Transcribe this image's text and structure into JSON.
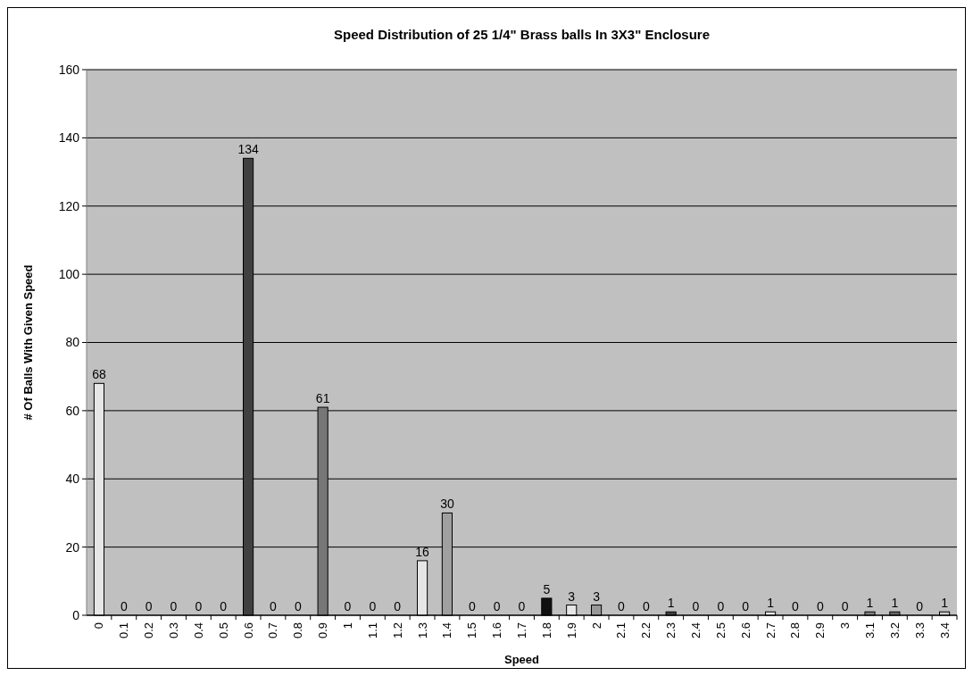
{
  "chart_data": {
    "type": "bar",
    "title": "Speed Distribution of 25 1/4\" Brass balls In 3X3\" Enclosure",
    "xlabel": "Speed",
    "ylabel": "# Of Balls With Given Speed",
    "categories": [
      "0",
      "0.1",
      "0.2",
      "0.3",
      "0.4",
      "0.5",
      "0.6",
      "0.7",
      "0.8",
      "0.9",
      "1",
      "1.1",
      "1.2",
      "1.3",
      "1.4",
      "1.5",
      "1.6",
      "1.7",
      "1.8",
      "1.9",
      "2",
      "2.1",
      "2.2",
      "2.3",
      "2.4",
      "2.5",
      "2.6",
      "2.7",
      "2.8",
      "2.9",
      "3",
      "3.1",
      "3.2",
      "3.3",
      "3.4"
    ],
    "values": [
      68,
      0,
      0,
      0,
      0,
      0,
      134,
      0,
      0,
      61,
      0,
      0,
      0,
      16,
      30,
      0,
      0,
      0,
      5,
      3,
      3,
      0,
      0,
      1,
      0,
      0,
      0,
      1,
      0,
      0,
      0,
      1,
      1,
      0,
      1
    ],
    "colors": [
      "#e6e6e6",
      "#808080",
      "#808080",
      "#808080",
      "#808080",
      "#808080",
      "#404040",
      "#808080",
      "#808080",
      "#777777",
      "#808080",
      "#808080",
      "#808080",
      "#e6e6e6",
      "#a0a0a0",
      "#808080",
      "#808080",
      "#808080",
      "#111111",
      "#e6e6e6",
      "#999999",
      "#808080",
      "#808080",
      "#404040",
      "#808080",
      "#808080",
      "#808080",
      "#e6e6e6",
      "#808080",
      "#808080",
      "#808080",
      "#808080",
      "#666666",
      "#808080",
      "#cccccc"
    ],
    "ylim": [
      0,
      160
    ],
    "yticks": [
      0,
      20,
      40,
      60,
      80,
      100,
      120,
      140,
      160
    ],
    "grid": "y",
    "data_labels": true
  }
}
